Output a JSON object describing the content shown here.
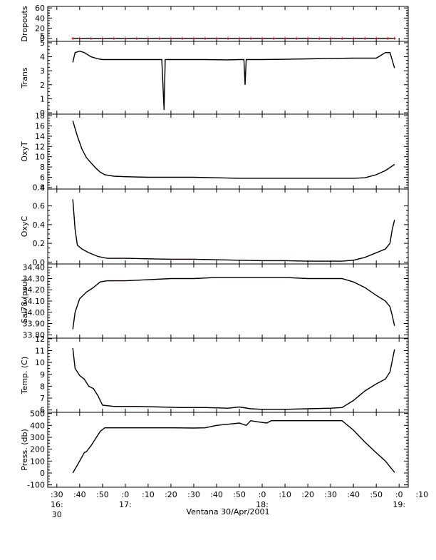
{
  "chart_data": [
    {
      "type": "line",
      "ylabel": "Dropouts",
      "ylim": [
        -6,
        63
      ],
      "yticks": [
        "0",
        "20",
        "40",
        "60"
      ],
      "ytick_values": [
        0,
        20,
        40,
        60
      ],
      "yminor": [
        10,
        30,
        50
      ],
      "ytick_labels_extra": [
        {
          "value": 5,
          "label": "5"
        }
      ],
      "series": [
        {
          "values": [
            [
              37,
              0
            ],
            [
              40,
              0
            ],
            [
              45,
              0
            ],
            [
              50,
              0
            ],
            [
              55,
              0
            ],
            [
              60,
              0
            ],
            [
              65,
              0
            ],
            [
              70,
              0
            ],
            [
              75,
              0
            ],
            [
              80,
              0
            ],
            [
              85,
              0
            ],
            [
              90,
              0
            ],
            [
              95,
              0
            ],
            [
              100,
              0
            ],
            [
              105,
              0
            ],
            [
              110,
              0
            ],
            [
              115,
              0
            ],
            [
              120,
              0
            ],
            [
              125,
              0
            ],
            [
              130,
              0
            ],
            [
              135,
              0
            ],
            [
              140,
              0
            ],
            [
              145,
              0
            ],
            [
              150,
              0
            ],
            [
              155,
              0
            ],
            [
              160,
              0
            ],
            [
              165,
              0
            ],
            [
              170,
              0
            ],
            [
              175,
              0
            ],
            [
              178,
              0
            ]
          ],
          "markers": true
        }
      ]
    },
    {
      "type": "line",
      "ylabel": "Trans",
      "ylim": [
        -0.1,
        5.1
      ],
      "yticks": [
        "0",
        "1",
        "2",
        "3",
        "4",
        "5"
      ],
      "ytick_values": [
        0,
        1,
        2,
        3,
        4,
        5
      ],
      "series": [
        {
          "values": [
            [
              37,
              3.6
            ],
            [
              38,
              4.3
            ],
            [
              40,
              4.4
            ],
            [
              42,
              4.3
            ],
            [
              45,
              4.0
            ],
            [
              48,
              3.85
            ],
            [
              50,
              3.8
            ],
            [
              60,
              3.8
            ],
            [
              70,
              3.8
            ],
            [
              76,
              3.8
            ],
            [
              77,
              0.2
            ],
            [
              77.5,
              3.8
            ],
            [
              85,
              3.8
            ],
            [
              95,
              3.8
            ],
            [
              105,
              3.78
            ],
            [
              110,
              3.8
            ],
            [
              112,
              3.8
            ],
            [
              112.5,
              2.0
            ],
            [
              113,
              3.8
            ],
            [
              120,
              3.8
            ],
            [
              130,
              3.82
            ],
            [
              140,
              3.85
            ],
            [
              150,
              3.88
            ],
            [
              160,
              3.9
            ],
            [
              170,
              3.9
            ],
            [
              172,
              4.1
            ],
            [
              174,
              4.3
            ],
            [
              176,
              4.3
            ],
            [
              178,
              3.2
            ]
          ]
        }
      ]
    },
    {
      "type": "line",
      "ylabel": "OxyT",
      "ylim": [
        3.7,
        18.3
      ],
      "yticks": [
        "4",
        "6",
        "8",
        "10",
        "12",
        "14",
        "16",
        "18"
      ],
      "ytick_values": [
        4,
        6,
        8,
        10,
        12,
        14,
        16,
        18
      ],
      "series": [
        {
          "values": [
            [
              37,
              17
            ],
            [
              39,
              14
            ],
            [
              41,
              11.5
            ],
            [
              43,
              9.8
            ],
            [
              45,
              8.8
            ],
            [
              47,
              7.8
            ],
            [
              49,
              7.0
            ],
            [
              51,
              6.5
            ],
            [
              55,
              6.2
            ],
            [
              60,
              6.1
            ],
            [
              70,
              6.0
            ],
            [
              80,
              6.0
            ],
            [
              90,
              6.0
            ],
            [
              100,
              5.9
            ],
            [
              110,
              5.8
            ],
            [
              120,
              5.8
            ],
            [
              130,
              5.8
            ],
            [
              140,
              5.8
            ],
            [
              150,
              5.8
            ],
            [
              160,
              5.8
            ],
            [
              165,
              5.9
            ],
            [
              170,
              6.5
            ],
            [
              174,
              7.3
            ],
            [
              178,
              8.5
            ]
          ]
        }
      ]
    },
    {
      "type": "line",
      "ylabel": "OxyC",
      "ylim": [
        -0.02,
        0.78
      ],
      "yticks": [
        "0.0",
        "0.2",
        "0.4",
        "0.6"
      ],
      "ytick_values": [
        0,
        0.2,
        0.4,
        0.6
      ],
      "ytick_labels_extra": [
        {
          "value": 0.8,
          "label": "0.8"
        }
      ],
      "series": [
        {
          "values": [
            [
              37,
              0.67
            ],
            [
              38,
              0.35
            ],
            [
              39,
              0.18
            ],
            [
              41,
              0.14
            ],
            [
              44,
              0.1
            ],
            [
              48,
              0.06
            ],
            [
              52,
              0.04
            ],
            [
              60,
              0.04
            ],
            [
              70,
              0.035
            ],
            [
              80,
              0.03
            ],
            [
              90,
              0.03
            ],
            [
              100,
              0.025
            ],
            [
              110,
              0.02
            ],
            [
              120,
              0.015
            ],
            [
              130,
              0.015
            ],
            [
              140,
              0.01
            ],
            [
              150,
              0.01
            ],
            [
              155,
              0.01
            ],
            [
              160,
              0.02
            ],
            [
              165,
              0.05
            ],
            [
              170,
              0.1
            ],
            [
              174,
              0.14
            ],
            [
              176,
              0.2
            ],
            [
              177,
              0.35
            ],
            [
              178,
              0.45
            ]
          ]
        }
      ]
    },
    {
      "type": "line",
      "ylabel": "Sal78 (psu)",
      "ylim": [
        33.77,
        34.43
      ],
      "yticks": [
        "33.80",
        "33.90",
        "34.00",
        "34.10",
        "34.20",
        "34.30",
        "34.40"
      ],
      "ytick_values": [
        33.8,
        33.9,
        34.0,
        34.1,
        34.2,
        34.3,
        34.4
      ],
      "series": [
        {
          "values": [
            [
              37,
              33.85
            ],
            [
              38,
              34.0
            ],
            [
              40,
              34.12
            ],
            [
              43,
              34.18
            ],
            [
              46,
              34.22
            ],
            [
              49,
              34.27
            ],
            [
              52,
              34.28
            ],
            [
              60,
              34.28
            ],
            [
              70,
              34.29
            ],
            [
              80,
              34.3
            ],
            [
              90,
              34.3
            ],
            [
              100,
              34.31
            ],
            [
              110,
              34.31
            ],
            [
              120,
              34.31
            ],
            [
              130,
              34.31
            ],
            [
              140,
              34.3
            ],
            [
              150,
              34.3
            ],
            [
              155,
              34.3
            ],
            [
              160,
              34.27
            ],
            [
              165,
              34.22
            ],
            [
              170,
              34.15
            ],
            [
              174,
              34.1
            ],
            [
              176,
              34.05
            ],
            [
              177,
              33.97
            ],
            [
              178,
              33.88
            ]
          ]
        }
      ]
    },
    {
      "type": "line",
      "ylabel": "Temp. (C)",
      "ylim": [
        5.8,
        12.05
      ],
      "yticks": [
        "6",
        "7",
        "8",
        "9",
        "10",
        "11",
        "12"
      ],
      "ytick_values": [
        6,
        7,
        8,
        9,
        10,
        11,
        12
      ],
      "series": [
        {
          "values": [
            [
              37,
              11.2
            ],
            [
              38,
              9.5
            ],
            [
              40,
              8.9
            ],
            [
              42,
              8.6
            ],
            [
              44,
              8.0
            ],
            [
              46,
              7.8
            ],
            [
              48,
              7.2
            ],
            [
              50,
              6.4
            ],
            [
              55,
              6.3
            ],
            [
              65,
              6.3
            ],
            [
              75,
              6.25
            ],
            [
              85,
              6.2
            ],
            [
              95,
              6.2
            ],
            [
              105,
              6.15
            ],
            [
              110,
              6.25
            ],
            [
              115,
              6.1
            ],
            [
              120,
              6.05
            ],
            [
              130,
              6.05
            ],
            [
              140,
              6.1
            ],
            [
              150,
              6.15
            ],
            [
              155,
              6.2
            ],
            [
              160,
              6.8
            ],
            [
              165,
              7.6
            ],
            [
              170,
              8.2
            ],
            [
              174,
              8.6
            ],
            [
              176,
              9.2
            ],
            [
              178,
              11.1
            ]
          ]
        }
      ]
    },
    {
      "type": "line",
      "ylabel": "Press. (db)",
      "ylim": [
        -120,
        510
      ],
      "yticks": [
        "-100",
        "0",
        "100",
        "200",
        "300",
        "400",
        "500"
      ],
      "ytick_values": [
        -100,
        0,
        100,
        200,
        300,
        400,
        500
      ],
      "series": [
        {
          "values": [
            [
              37,
              0
            ],
            [
              40,
              100
            ],
            [
              42,
              170
            ],
            [
              43,
              180
            ],
            [
              45,
              230
            ],
            [
              49,
              350
            ],
            [
              51,
              380
            ],
            [
              60,
              380
            ],
            [
              70,
              380
            ],
            [
              80,
              380
            ],
            [
              90,
              378
            ],
            [
              95,
              380
            ],
            [
              100,
              400
            ],
            [
              105,
              410
            ],
            [
              110,
              420
            ],
            [
              113,
              400
            ],
            [
              115,
              440
            ],
            [
              118,
              430
            ],
            [
              122,
              420
            ],
            [
              124,
              440
            ],
            [
              130,
              440
            ],
            [
              140,
              440
            ],
            [
              150,
              440
            ],
            [
              155,
              440
            ],
            [
              160,
              360
            ],
            [
              165,
              260
            ],
            [
              170,
              170
            ],
            [
              174,
              100
            ],
            [
              178,
              5
            ]
          ]
        }
      ]
    }
  ],
  "x_axis": {
    "xlim": [
      26,
      184
    ],
    "ticks": [
      {
        "value": 30,
        "label": ":30"
      },
      {
        "value": 40,
        "label": ":40"
      },
      {
        "value": 50,
        "label": ":50"
      },
      {
        "value": 60,
        "label": ":0"
      },
      {
        "value": 70,
        "label": ":10"
      },
      {
        "value": 80,
        "label": ":20"
      },
      {
        "value": 90,
        "label": ":30"
      },
      {
        "value": 100,
        "label": ":40"
      },
      {
        "value": 110,
        "label": ":50"
      },
      {
        "value": 120,
        "label": ":0"
      },
      {
        "value": 130,
        "label": ":10"
      },
      {
        "value": 140,
        "label": ":20"
      },
      {
        "value": 150,
        "label": ":30"
      },
      {
        "value": 160,
        "label": ":40"
      },
      {
        "value": 170,
        "label": ":50"
      },
      {
        "value": 180,
        "label": ":0"
      },
      {
        "value": 190,
        "label": ":10"
      }
    ],
    "hour_labels": [
      {
        "value": 30,
        "label": "16:"
      },
      {
        "value": 60,
        "label": "17:"
      },
      {
        "value": 120,
        "label": "18:"
      },
      {
        "value": 180,
        "label": "19:"
      }
    ],
    "sub_label": {
      "value": 30,
      "label": "30"
    },
    "xlabel": "Ventana 30/Apr/2001"
  }
}
